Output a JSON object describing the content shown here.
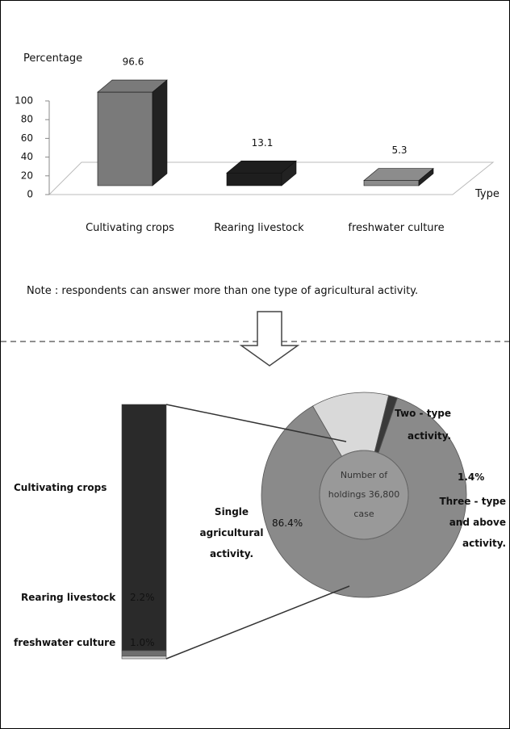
{
  "chart_data": [
    {
      "type": "bar",
      "y_label": "Percentage",
      "x_label": "Type",
      "categories": [
        "Cultivating crops",
        "Rearing livestock",
        "freshwater culture"
      ],
      "values": [
        96.6,
        13.1,
        5.3
      ],
      "colors": [
        "#7a7a7a",
        "#1e1e1e",
        "#8c8c8c"
      ],
      "ylim": [
        0,
        100
      ],
      "yticks": [
        0,
        20,
        40,
        60,
        80,
        100
      ],
      "note": "Note : respondents can answer  more than one type of agricultural activity."
    },
    {
      "type": "pie",
      "center_label": "Number of holdings 36,800 case",
      "categories": [
        "Single agricultural activity.",
        "Two - type activity.",
        "Three - type and above activity."
      ],
      "values": [
        86.4,
        12.2,
        1.4
      ],
      "value_labels": [
        "86.4%",
        null,
        "1.4%"
      ],
      "colors": [
        "#8a8a8a",
        "#d9d9d9",
        "#3a3a3a"
      ],
      "stack": {
        "categories": [
          "Cultivating crops",
          "Rearing livestock",
          "freshwater culture"
        ],
        "values": [
          96.8,
          2.2,
          1.0
        ],
        "value_labels": [
          null,
          "2.2%",
          "1.0%"
        ],
        "colors": [
          "#2a2a2a",
          "#6e6e6e",
          "#cfcfcf"
        ]
      }
    }
  ]
}
